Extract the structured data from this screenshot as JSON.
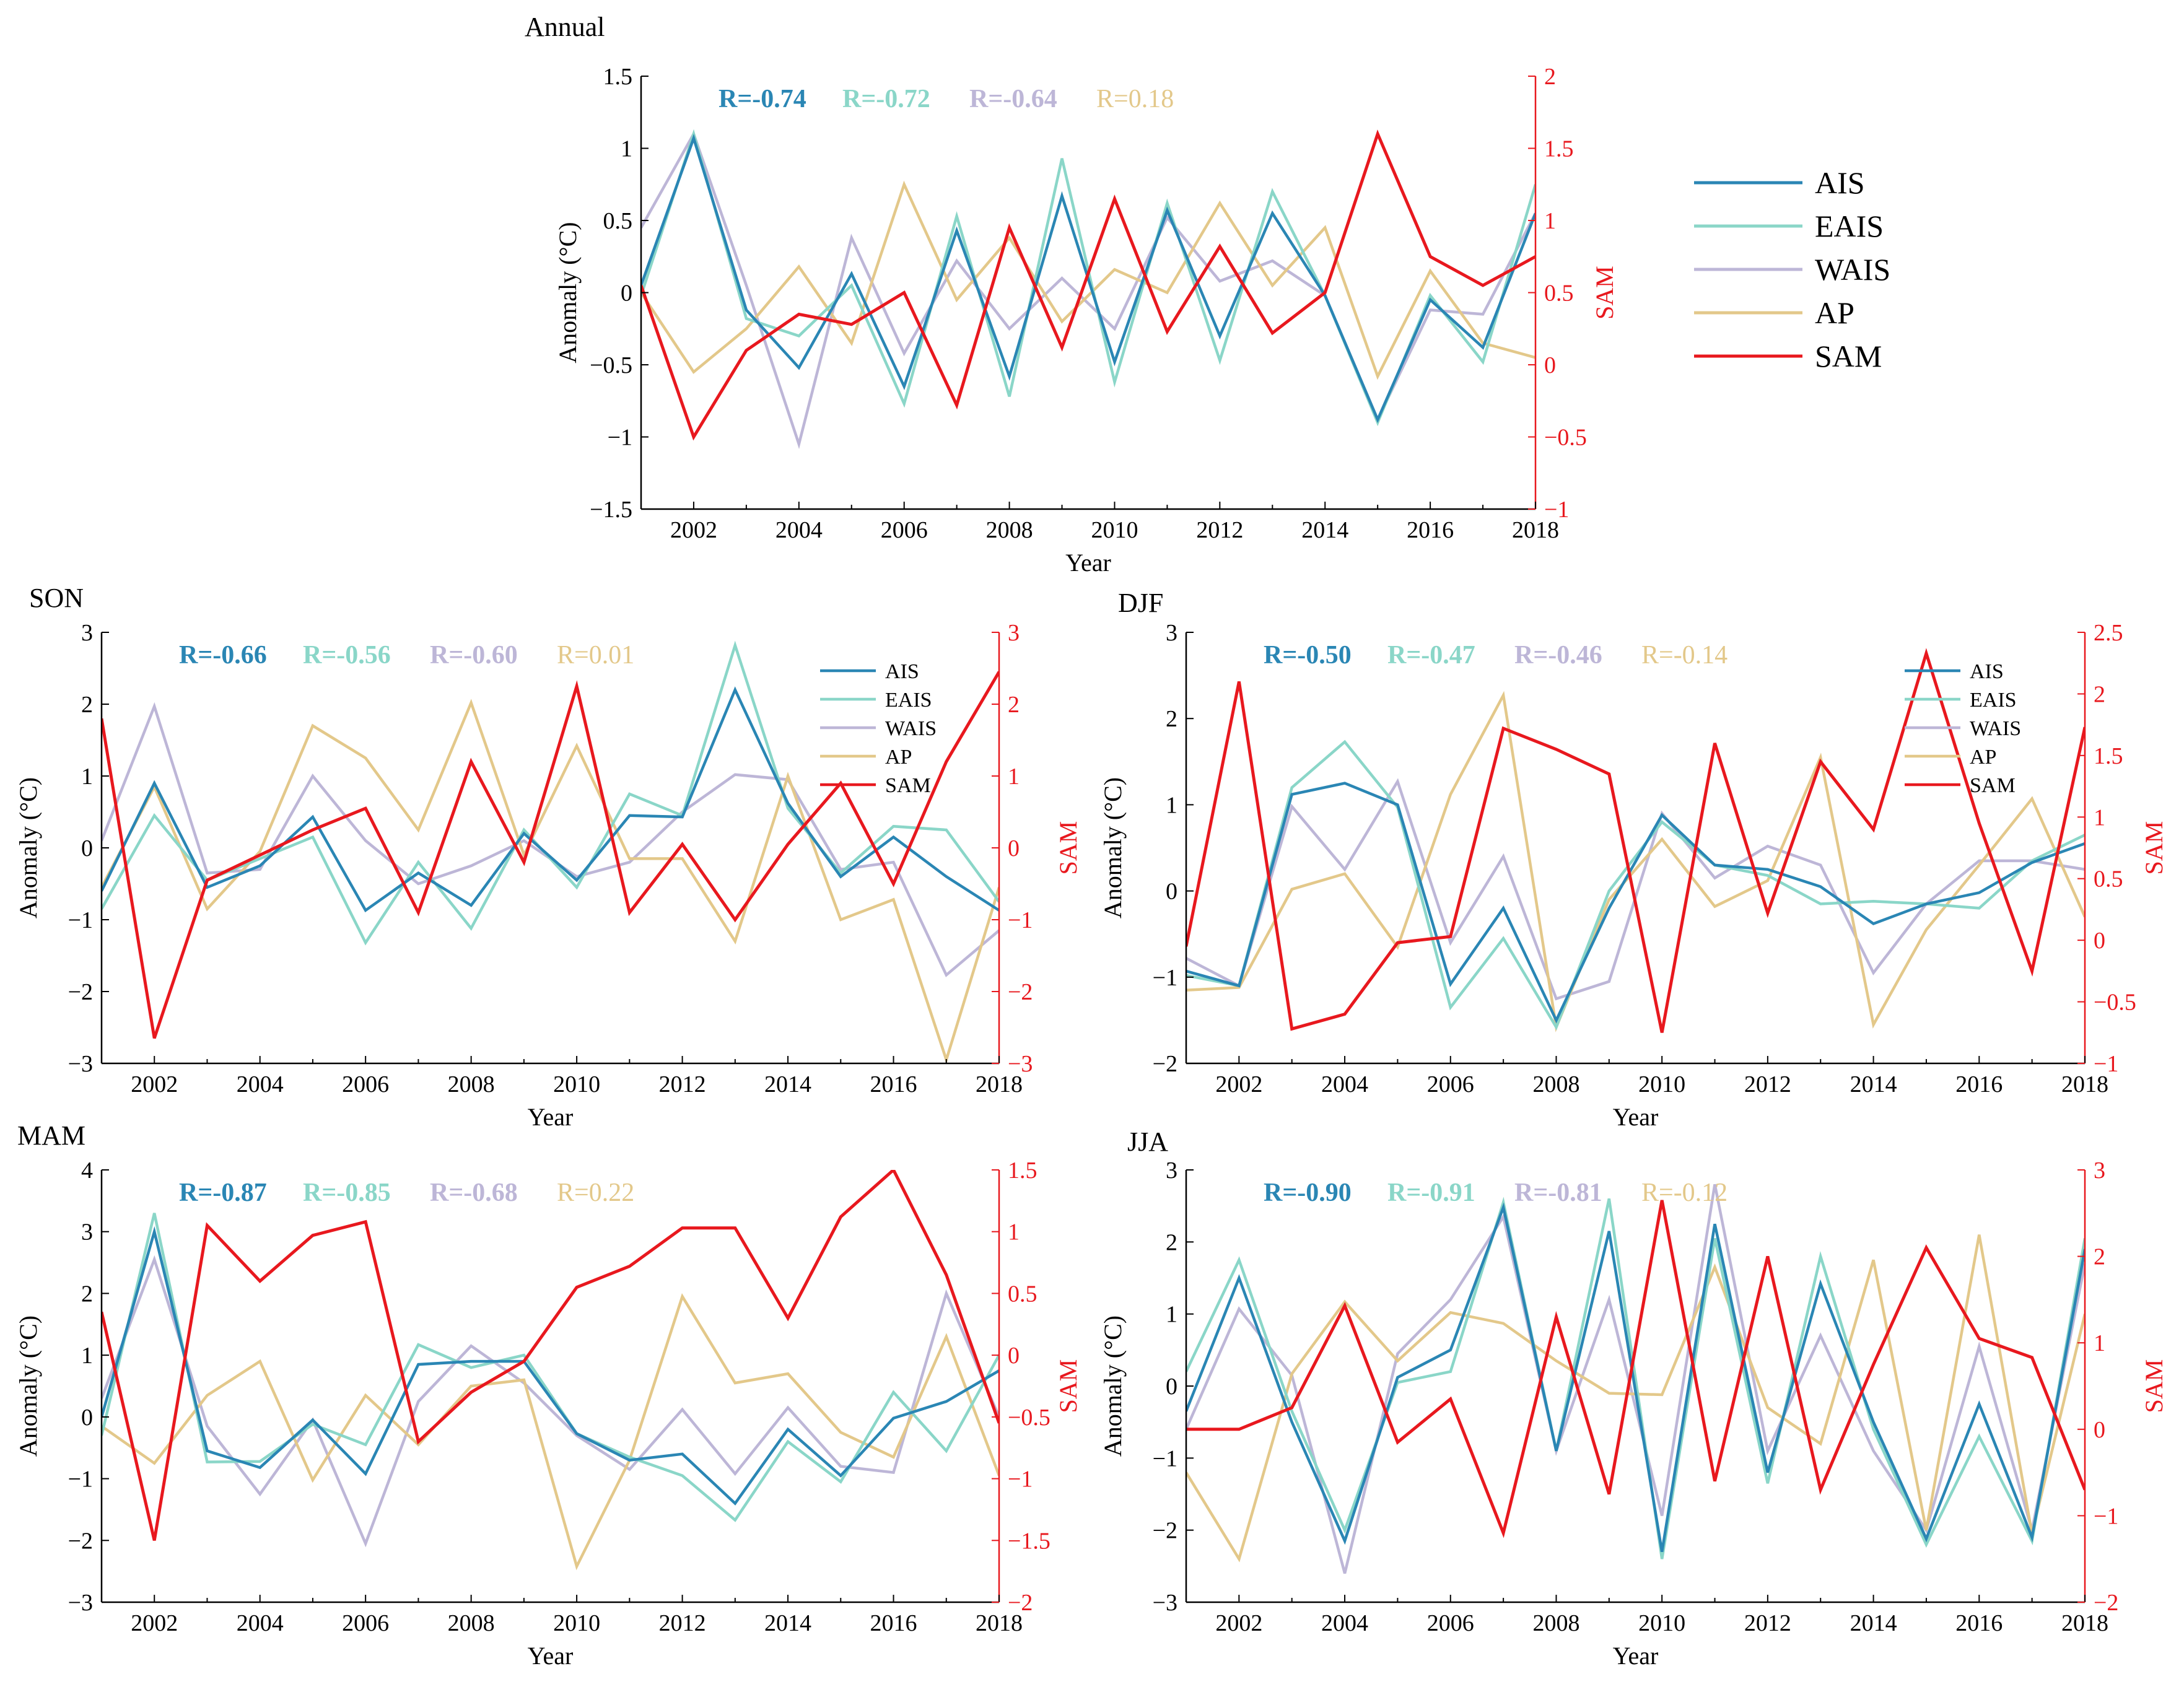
{
  "figure": {
    "global_legend": [
      "AIS",
      "EAIS",
      "WAIS",
      "AP",
      "SAM"
    ]
  },
  "colors": {
    "AIS": "#2a86b4",
    "EAIS": "#8ad6c8",
    "WAIS": "#bdb6d7",
    "AP": "#e3c88a",
    "SAM": "#e8181e",
    "R_AIS": "#2a86b4",
    "R_EAIS": "#8ad6c8",
    "R_WAIS": "#bdb6d7",
    "R_AP": "#e3c88a"
  },
  "chart_data": [
    {
      "id": "annual",
      "type": "line",
      "title": "Annual",
      "xlabel": "Year",
      "ylabel": "Anomaly (°C)",
      "y2label": "SAM",
      "xlim": [
        2001,
        2018
      ],
      "xticks": [
        2002,
        2004,
        2006,
        2008,
        2010,
        2012,
        2014,
        2016,
        2018
      ],
      "ylim": [
        -1.5,
        1.5
      ],
      "yticks": [
        -1.5,
        -1,
        -0.5,
        0,
        0.5,
        1,
        1.5
      ],
      "ytick_labels": [
        "−1.5",
        "−1",
        "−0.5",
        "0",
        "0.5",
        "1",
        "1.5"
      ],
      "y2lim": [
        -1,
        2
      ],
      "y2ticks": [
        -1,
        -0.5,
        0,
        0.5,
        1,
        1.5,
        2
      ],
      "y2tick_labels": [
        "−1",
        "−0.5",
        "0",
        "0.5",
        "1",
        "1.5",
        "2"
      ],
      "legend": false,
      "r_labels": [
        {
          "text": "R=-0.74",
          "series": "AIS",
          "bold": true
        },
        {
          "text": "R=-0.72",
          "series": "EAIS",
          "bold": true
        },
        {
          "text": "R=-0.64",
          "series": "WAIS",
          "bold": true
        },
        {
          "text": "R=0.18",
          "series": "AP",
          "bold": false
        }
      ],
      "x": [
        2001,
        2002,
        2003,
        2004,
        2005,
        2006,
        2007,
        2008,
        2009,
        2010,
        2011,
        2012,
        2013,
        2014,
        2015,
        2016,
        2017,
        2018
      ],
      "series": [
        {
          "name": "WAIS",
          "axis": "left",
          "values": [
            0.45,
            1.1,
            0.05,
            -1.05,
            0.38,
            -0.42,
            0.22,
            -0.25,
            0.1,
            -0.25,
            0.52,
            0.08,
            0.22,
            -0.02,
            -0.88,
            -0.12,
            -0.15,
            0.55
          ]
        },
        {
          "name": "AP",
          "axis": "left",
          "values": [
            0.0,
            -0.55,
            -0.25,
            0.18,
            -0.35,
            0.75,
            -0.05,
            0.38,
            -0.2,
            0.16,
            0.0,
            0.62,
            0.05,
            0.45,
            -0.58,
            0.15,
            -0.35,
            -0.45
          ]
        },
        {
          "name": "EAIS",
          "axis": "left",
          "values": [
            -0.02,
            1.1,
            -0.18,
            -0.3,
            0.05,
            -0.77,
            0.53,
            -0.72,
            0.93,
            -0.62,
            0.62,
            -0.47,
            0.7,
            -0.02,
            -0.9,
            -0.02,
            -0.48,
            0.75
          ]
        },
        {
          "name": "AIS",
          "axis": "left",
          "values": [
            0.05,
            1.07,
            -0.12,
            -0.52,
            0.13,
            -0.65,
            0.43,
            -0.58,
            0.67,
            -0.48,
            0.57,
            -0.3,
            0.55,
            -0.02,
            -0.88,
            -0.05,
            -0.38,
            0.55
          ]
        },
        {
          "name": "SAM",
          "axis": "right",
          "values": [
            0.55,
            -0.5,
            0.1,
            0.35,
            0.28,
            0.5,
            -0.28,
            0.95,
            0.12,
            1.15,
            0.23,
            0.82,
            0.22,
            0.5,
            1.6,
            0.75,
            0.55,
            0.75
          ]
        }
      ]
    },
    {
      "id": "son",
      "type": "line",
      "title": "SON",
      "xlabel": "Year",
      "ylabel": "Anomaly (°C)",
      "y2label": "SAM",
      "xlim": [
        2001,
        2018
      ],
      "xticks": [
        2002,
        2004,
        2006,
        2008,
        2010,
        2012,
        2014,
        2016,
        2018
      ],
      "ylim": [
        -3,
        3
      ],
      "yticks": [
        -3,
        -2,
        -1,
        0,
        1,
        2,
        3
      ],
      "ytick_labels": [
        "−3",
        "−2",
        "−1",
        "0",
        "1",
        "2",
        "3"
      ],
      "y2lim": [
        -3,
        3
      ],
      "y2ticks": [
        -3,
        -2,
        -1,
        0,
        1,
        2,
        3
      ],
      "y2tick_labels": [
        "−3",
        "−2",
        "−1",
        "0",
        "1",
        "2",
        "3"
      ],
      "legend": true,
      "legend_items": [
        "AIS",
        "EAIS",
        "WAIS",
        "AP",
        "SAM"
      ],
      "r_labels": [
        {
          "text": "R=-0.66",
          "series": "AIS",
          "bold": true
        },
        {
          "text": "R=-0.56",
          "series": "EAIS",
          "bold": true
        },
        {
          "text": "R=-0.60",
          "series": "WAIS",
          "bold": true
        },
        {
          "text": "R=0.01",
          "series": "AP",
          "bold": false
        }
      ],
      "x": [
        2001,
        2002,
        2003,
        2004,
        2005,
        2006,
        2007,
        2008,
        2009,
        2010,
        2011,
        2012,
        2013,
        2014,
        2015,
        2016,
        2017,
        2018
      ],
      "series": [
        {
          "name": "WAIS",
          "axis": "left",
          "values": [
            0.1,
            1.97,
            -0.35,
            -0.3,
            1.0,
            0.1,
            -0.5,
            -0.25,
            0.1,
            -0.4,
            -0.2,
            0.5,
            1.02,
            0.95,
            -0.3,
            -0.2,
            -1.77,
            -1.15
          ]
        },
        {
          "name": "AP",
          "axis": "left",
          "values": [
            -0.55,
            0.85,
            -0.85,
            -0.05,
            1.7,
            1.25,
            0.25,
            2.02,
            -0.1,
            1.42,
            -0.15,
            -0.15,
            -1.3,
            1.0,
            -1.0,
            -0.72,
            -2.95,
            -0.55
          ]
        },
        {
          "name": "EAIS",
          "axis": "left",
          "values": [
            -0.85,
            0.45,
            -0.45,
            -0.15,
            0.15,
            -1.32,
            -0.2,
            -1.12,
            0.25,
            -0.55,
            0.75,
            0.45,
            2.82,
            0.55,
            -0.35,
            0.3,
            0.25,
            -0.75
          ]
        },
        {
          "name": "AIS",
          "axis": "left",
          "values": [
            -0.6,
            0.9,
            -0.55,
            -0.25,
            0.43,
            -0.87,
            -0.35,
            -0.8,
            0.2,
            -0.45,
            0.45,
            0.43,
            2.2,
            0.62,
            -0.4,
            0.15,
            -0.4,
            -0.87
          ]
        },
        {
          "name": "SAM",
          "axis": "right",
          "values": [
            1.8,
            -2.65,
            -0.45,
            -0.1,
            0.25,
            0.55,
            -0.9,
            1.2,
            -0.2,
            2.25,
            -0.9,
            0.05,
            -1.0,
            0.05,
            0.9,
            -0.5,
            1.2,
            2.45
          ]
        }
      ]
    },
    {
      "id": "djf",
      "type": "line",
      "title": "DJF",
      "xlabel": "Year",
      "ylabel": "Anomaly (°C)",
      "y2label": "SAM",
      "xlim": [
        2001,
        2018
      ],
      "xticks": [
        2002,
        2004,
        2006,
        2008,
        2010,
        2012,
        2014,
        2016,
        2018
      ],
      "ylim": [
        -2,
        3
      ],
      "yticks": [
        -2,
        -1,
        0,
        1,
        2,
        3
      ],
      "ytick_labels": [
        "−2",
        "−1",
        "0",
        "1",
        "2",
        "3"
      ],
      "y2lim": [
        -1,
        2.5
      ],
      "y2ticks": [
        -1,
        -0.5,
        0,
        0.5,
        1,
        1.5,
        2,
        2.5
      ],
      "y2tick_labels": [
        "−1",
        "−0.5",
        "0",
        "0.5",
        "1",
        "1.5",
        "2",
        "2.5"
      ],
      "legend": true,
      "legend_items": [
        "AIS",
        "EAIS",
        "WAIS",
        "AP",
        "SAM"
      ],
      "r_labels": [
        {
          "text": "R=-0.50",
          "series": "AIS",
          "bold": true
        },
        {
          "text": "R=-0.47",
          "series": "EAIS",
          "bold": true
        },
        {
          "text": "R=-0.46",
          "series": "WAIS",
          "bold": true
        },
        {
          "text": "R=-0.14",
          "series": "AP",
          "bold": false
        }
      ],
      "x": [
        2001,
        2002,
        2003,
        2004,
        2005,
        2006,
        2007,
        2008,
        2009,
        2010,
        2011,
        2012,
        2013,
        2014,
        2015,
        2016,
        2017,
        2018
      ],
      "series": [
        {
          "name": "WAIS",
          "axis": "left",
          "values": [
            -0.78,
            -1.1,
            0.98,
            0.25,
            1.27,
            -0.6,
            0.4,
            -1.25,
            -1.05,
            0.9,
            0.15,
            0.52,
            0.3,
            -0.95,
            -0.15,
            0.35,
            0.35,
            0.25
          ]
        },
        {
          "name": "AP",
          "axis": "left",
          "values": [
            -1.15,
            -1.12,
            0.02,
            0.2,
            -0.65,
            1.12,
            2.27,
            -1.58,
            -0.1,
            0.6,
            -0.18,
            0.12,
            1.55,
            -1.55,
            -0.45,
            0.3,
            1.07,
            -0.3
          ]
        },
        {
          "name": "EAIS",
          "axis": "left",
          "values": [
            -0.98,
            -1.1,
            1.2,
            1.73,
            0.97,
            -1.35,
            -0.55,
            -1.58,
            0.0,
            0.8,
            0.3,
            0.18,
            -0.15,
            -0.12,
            -0.15,
            -0.2,
            0.35,
            0.65
          ]
        },
        {
          "name": "AIS",
          "axis": "left",
          "values": [
            -0.93,
            -1.1,
            1.12,
            1.25,
            1.0,
            -1.08,
            -0.2,
            -1.5,
            -0.2,
            0.88,
            0.3,
            0.25,
            0.05,
            -0.38,
            -0.15,
            -0.02,
            0.33,
            0.55
          ]
        },
        {
          "name": "SAM",
          "axis": "right",
          "values": [
            -0.05,
            2.1,
            -0.72,
            -0.6,
            -0.02,
            0.03,
            1.72,
            1.55,
            1.35,
            -0.75,
            1.6,
            0.22,
            1.45,
            0.9,
            2.33,
            0.95,
            -0.25,
            1.73
          ]
        }
      ]
    },
    {
      "id": "mam",
      "type": "line",
      "title": "MAM",
      "xlabel": "Year",
      "ylabel": "Anomaly (°C)",
      "y2label": "SAM",
      "xlim": [
        2001,
        2018
      ],
      "xticks": [
        2002,
        2004,
        2006,
        2008,
        2010,
        2012,
        2014,
        2016,
        2018
      ],
      "ylim": [
        -3,
        4
      ],
      "yticks": [
        -3,
        -2,
        -1,
        0,
        1,
        2,
        3,
        4
      ],
      "ytick_labels": [
        "−3",
        "−2",
        "−1",
        "0",
        "1",
        "2",
        "3",
        "4"
      ],
      "y2lim": [
        -2,
        1.5
      ],
      "y2ticks": [
        -2,
        -1.5,
        -1,
        -0.5,
        0,
        0.5,
        1,
        1.5
      ],
      "y2tick_labels": [
        "−2",
        "−1.5",
        "−1",
        "−0.5",
        "0",
        "0.5",
        "1",
        "1.5"
      ],
      "legend": false,
      "r_labels": [
        {
          "text": "R=-0.87",
          "series": "AIS",
          "bold": true
        },
        {
          "text": "R=-0.85",
          "series": "EAIS",
          "bold": true
        },
        {
          "text": "R=-0.68",
          "series": "WAIS",
          "bold": true
        },
        {
          "text": "R=0.22",
          "series": "AP",
          "bold": false
        }
      ],
      "x": [
        2001,
        2002,
        2003,
        2004,
        2005,
        2006,
        2007,
        2008,
        2009,
        2010,
        2011,
        2012,
        2013,
        2014,
        2015,
        2016,
        2017,
        2018
      ],
      "series": [
        {
          "name": "WAIS",
          "axis": "left",
          "values": [
            0.3,
            2.55,
            -0.15,
            -1.25,
            -0.05,
            -2.05,
            0.25,
            1.15,
            0.55,
            -0.3,
            -0.85,
            0.12,
            -0.92,
            0.15,
            -0.8,
            -0.9,
            2.0,
            0.0
          ]
        },
        {
          "name": "AP",
          "axis": "left",
          "values": [
            -0.15,
            -0.75,
            0.35,
            0.9,
            -1.02,
            0.35,
            -0.45,
            0.5,
            0.6,
            -2.42,
            -0.7,
            1.95,
            0.55,
            0.7,
            -0.25,
            -0.65,
            1.3,
            -0.95
          ]
        },
        {
          "name": "EAIS",
          "axis": "left",
          "values": [
            -0.3,
            3.3,
            -0.73,
            -0.72,
            -0.12,
            -0.45,
            1.17,
            0.8,
            1.0,
            -0.27,
            -0.65,
            -0.95,
            -1.67,
            -0.4,
            -1.05,
            0.4,
            -0.55,
            1.0
          ]
        },
        {
          "name": "AIS",
          "axis": "left",
          "values": [
            0.0,
            3.0,
            -0.55,
            -0.82,
            -0.05,
            -0.92,
            0.85,
            0.9,
            0.9,
            -0.27,
            -0.7,
            -0.6,
            -1.4,
            -0.2,
            -0.95,
            -0.02,
            0.25,
            0.75
          ]
        },
        {
          "name": "SAM",
          "axis": "right",
          "values": [
            0.35,
            -1.5,
            1.05,
            0.6,
            0.97,
            1.08,
            -0.7,
            -0.3,
            -0.05,
            0.55,
            0.72,
            1.03,
            1.03,
            0.3,
            1.12,
            1.5,
            0.65,
            -0.55
          ]
        }
      ]
    },
    {
      "id": "jja",
      "type": "line",
      "title": "JJA",
      "xlabel": "Year",
      "ylabel": "Anomaly (°C)",
      "y2label": "SAM",
      "xlim": [
        2001,
        2018
      ],
      "xticks": [
        2002,
        2004,
        2006,
        2008,
        2010,
        2012,
        2014,
        2016,
        2018
      ],
      "ylim": [
        -3,
        3
      ],
      "yticks": [
        -3,
        -2,
        -1,
        0,
        1,
        2,
        3
      ],
      "ytick_labels": [
        "−3",
        "−2",
        "−1",
        "0",
        "1",
        "2",
        "3"
      ],
      "y2lim": [
        -2,
        3
      ],
      "y2ticks": [
        -2,
        -1,
        0,
        1,
        2,
        3
      ],
      "y2tick_labels": [
        "−2",
        "−1",
        "0",
        "1",
        "2",
        "3"
      ],
      "legend": false,
      "r_labels": [
        {
          "text": "R=-0.90",
          "series": "AIS",
          "bold": true
        },
        {
          "text": "R=-0.91",
          "series": "EAIS",
          "bold": true
        },
        {
          "text": "R=-0.81",
          "series": "WAIS",
          "bold": true
        },
        {
          "text": "R=-0.12",
          "series": "AP",
          "bold": false
        }
      ],
      "x": [
        2001,
        2002,
        2003,
        2004,
        2005,
        2006,
        2007,
        2008,
        2009,
        2010,
        2011,
        2012,
        2013,
        2014,
        2015,
        2016,
        2017,
        2018
      ],
      "series": [
        {
          "name": "WAIS",
          "axis": "left",
          "values": [
            -0.6,
            1.07,
            0.15,
            -2.6,
            0.45,
            1.2,
            2.35,
            -0.9,
            1.2,
            -1.8,
            2.8,
            -0.9,
            0.7,
            -0.9,
            -2.0,
            0.55,
            -2.0,
            1.7
          ]
        },
        {
          "name": "AP",
          "axis": "left",
          "values": [
            -1.2,
            -2.4,
            0.17,
            1.17,
            0.35,
            1.02,
            0.87,
            0.35,
            -0.1,
            -0.12,
            1.65,
            -0.3,
            -0.8,
            1.75,
            -2.0,
            2.1,
            -2.05,
            1.0
          ]
        },
        {
          "name": "EAIS",
          "axis": "left",
          "values": [
            0.2,
            1.75,
            -0.35,
            -2.0,
            0.05,
            0.2,
            2.55,
            -0.9,
            2.6,
            -2.4,
            2.05,
            -1.35,
            1.8,
            -0.6,
            -2.2,
            -0.7,
            -2.15,
            2.05
          ]
        },
        {
          "name": "AIS",
          "axis": "left",
          "values": [
            -0.35,
            1.5,
            -0.5,
            -2.15,
            0.12,
            0.5,
            2.48,
            -0.9,
            2.15,
            -2.3,
            2.25,
            -1.2,
            1.42,
            -0.5,
            -2.12,
            -0.25,
            -2.1,
            1.9
          ]
        },
        {
          "name": "SAM",
          "axis": "right",
          "values": [
            0.0,
            0.0,
            0.25,
            1.43,
            -0.15,
            0.35,
            -1.2,
            1.3,
            -0.75,
            2.65,
            -0.6,
            2.0,
            -0.7,
            0.75,
            2.1,
            1.05,
            0.83,
            -0.7
          ]
        }
      ]
    }
  ]
}
